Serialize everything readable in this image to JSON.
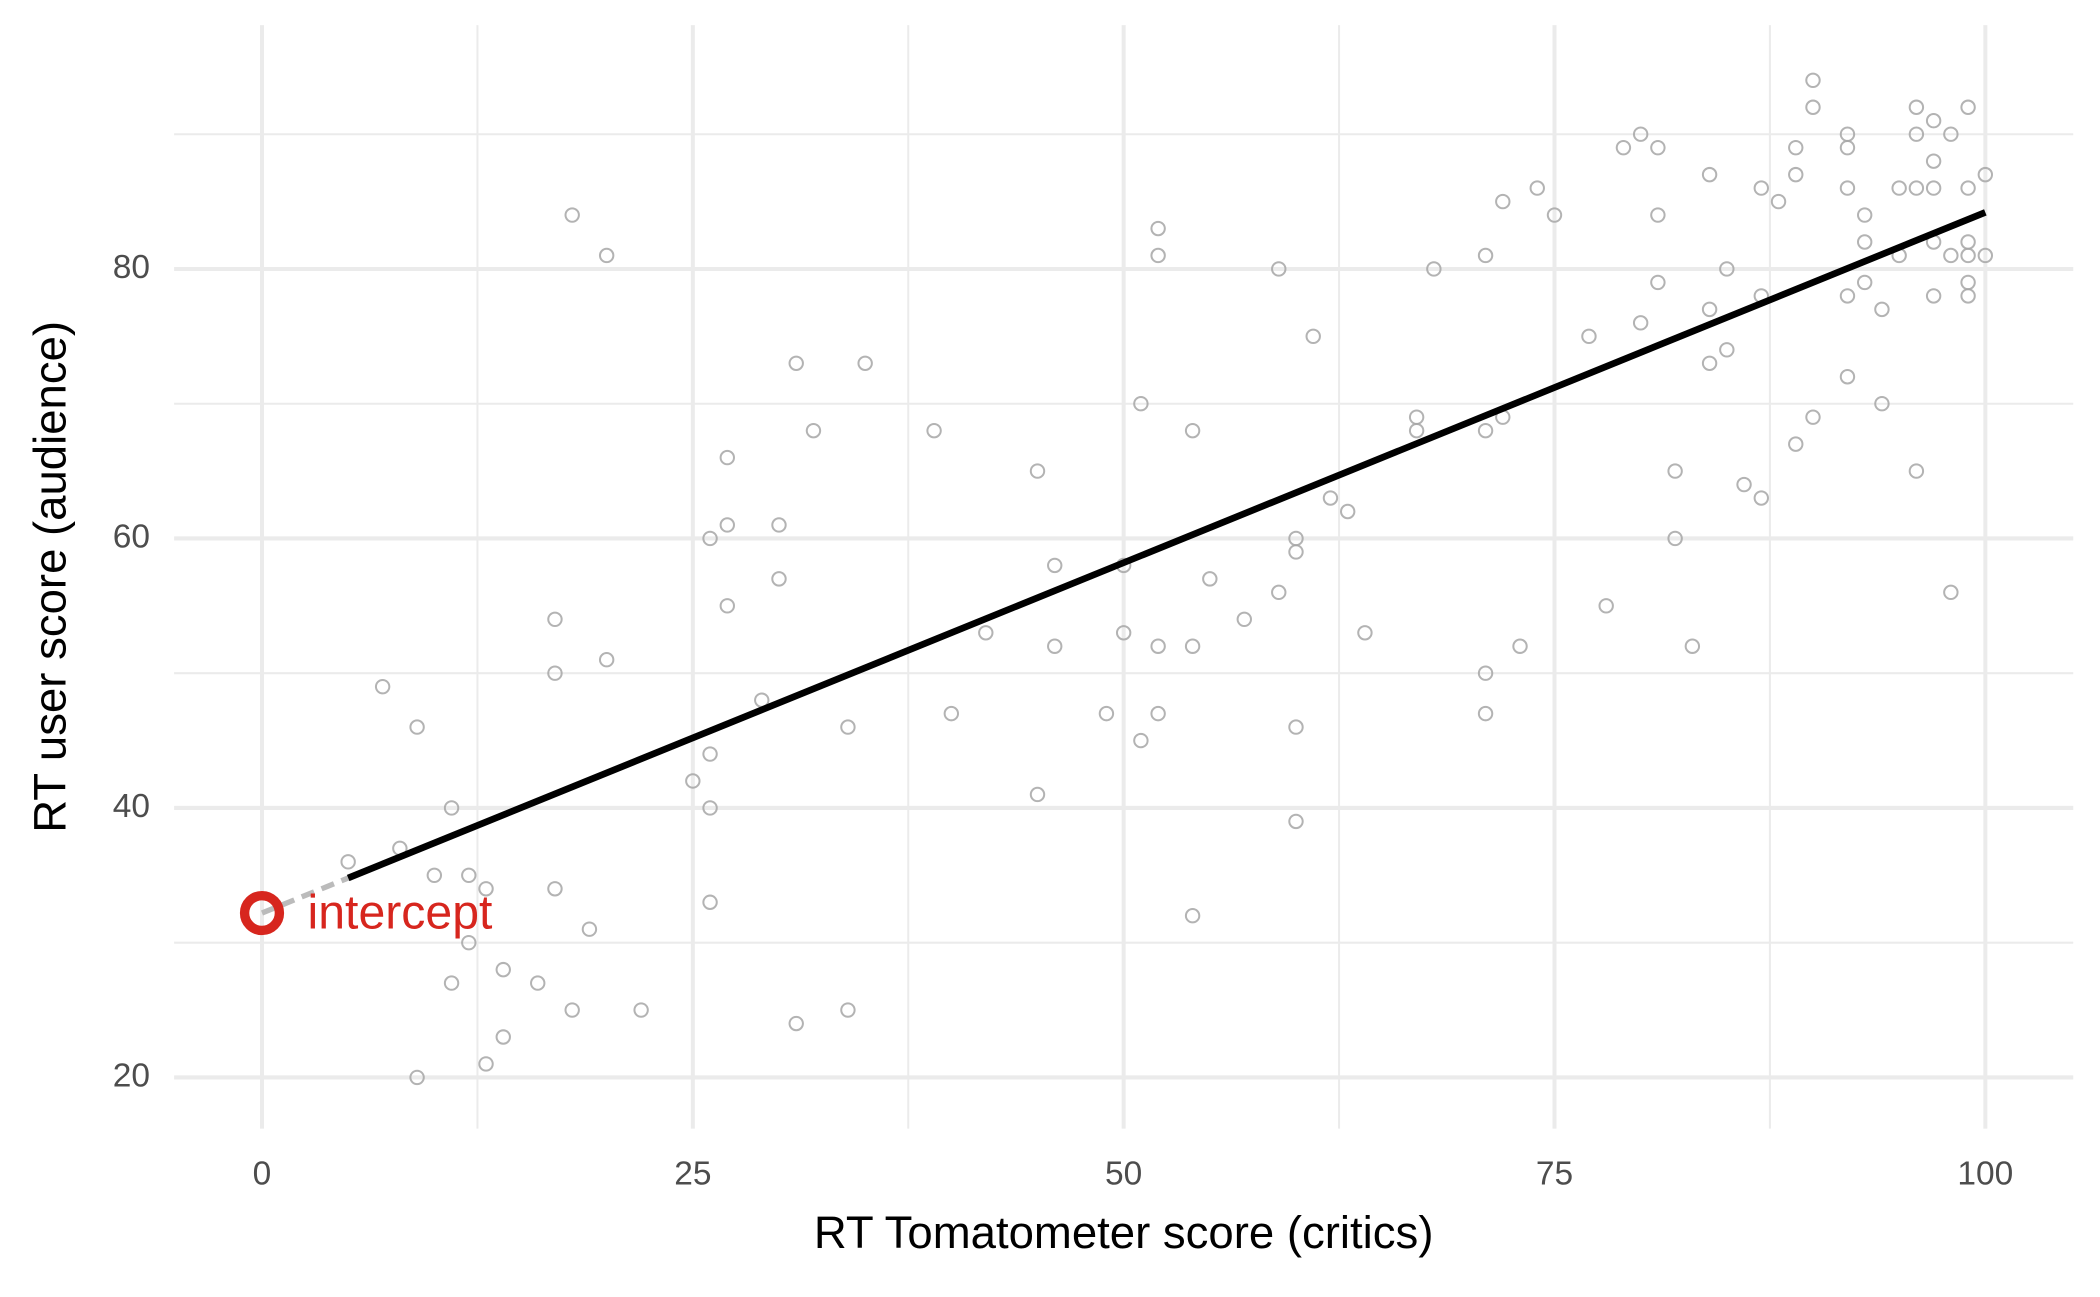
{
  "chart_data": {
    "type": "scatter",
    "x_label": "RT Tomatometer score (critics)",
    "y_label": "RT user score (audience)",
    "xlim": [
      -5.1,
      105.1
    ],
    "ylim": [
      16.2,
      98.1
    ],
    "xticks": [
      0,
      25,
      50,
      75,
      100
    ],
    "yticks": [
      20,
      40,
      60,
      80
    ],
    "x_minor_grid": [
      12.5,
      37.5,
      62.5,
      87.5
    ],
    "y_minor_grid": [
      30,
      50,
      70,
      90
    ],
    "grid": true,
    "series": [
      {
        "color": "#a6a6a6",
        "x": [
          5,
          7,
          8,
          9,
          9,
          10,
          11,
          11,
          12,
          12,
          13,
          13,
          14,
          14,
          16,
          17,
          17,
          17,
          18,
          18,
          19,
          20,
          20,
          22,
          25,
          26,
          26,
          26,
          26,
          27,
          27,
          27,
          29,
          30,
          30,
          31,
          31,
          32,
          34,
          34,
          35,
          39,
          40,
          42,
          45,
          45,
          46,
          46,
          49,
          50,
          50,
          51,
          51,
          52,
          52,
          52,
          52,
          54,
          54,
          54,
          55,
          57,
          59,
          59,
          60,
          60,
          60,
          60,
          61,
          62,
          63,
          64,
          67,
          67,
          68,
          71,
          71,
          71,
          71,
          72,
          72,
          73,
          74,
          75,
          77,
          78,
          79,
          80,
          80,
          81,
          81,
          81,
          82,
          82,
          83,
          84,
          84,
          84,
          85,
          85,
          86,
          87,
          87,
          87,
          88,
          89,
          89,
          89,
          90,
          90,
          90,
          92,
          92,
          92,
          92,
          92,
          93,
          93,
          93,
          94,
          94,
          95,
          95,
          96,
          96,
          96,
          96,
          97,
          97,
          97,
          97,
          97,
          98,
          98,
          98,
          99,
          99,
          99,
          99,
          99,
          99,
          100,
          100
        ],
        "values": [
          36,
          49,
          37,
          46,
          20,
          35,
          40,
          27,
          35,
          30,
          34,
          21,
          28,
          23,
          27,
          54,
          50,
          34,
          84,
          25,
          31,
          81,
          51,
          25,
          42,
          60,
          44,
          40,
          33,
          66,
          61,
          55,
          48,
          61,
          57,
          73,
          24,
          68,
          46,
          25,
          73,
          68,
          47,
          53,
          65,
          41,
          58,
          52,
          47,
          58,
          53,
          70,
          45,
          83,
          81,
          52,
          47,
          68,
          52,
          32,
          57,
          54,
          80,
          56,
          60,
          59,
          46,
          39,
          75,
          63,
          62,
          53,
          69,
          68,
          80,
          81,
          68,
          50,
          47,
          85,
          69,
          52,
          86,
          84,
          75,
          55,
          89,
          90,
          76,
          89,
          84,
          79,
          65,
          60,
          52,
          87,
          77,
          73,
          80,
          74,
          64,
          86,
          78,
          63,
          85,
          89,
          87,
          67,
          94,
          92,
          69,
          90,
          89,
          86,
          78,
          72,
          84,
          82,
          79,
          77,
          70,
          86,
          81,
          92,
          90,
          86,
          65,
          91,
          88,
          86,
          82,
          78,
          90,
          81,
          56,
          92,
          86,
          82,
          81,
          79,
          78,
          87,
          81
        ]
      }
    ],
    "fit_line": {
      "color": "#000000",
      "x": [
        5,
        100
      ],
      "values": [
        34.8,
        84.2
      ]
    },
    "intercept_point": {
      "label": "intercept",
      "color": "#d7261e",
      "x": 0,
      "value": 32.2
    }
  }
}
